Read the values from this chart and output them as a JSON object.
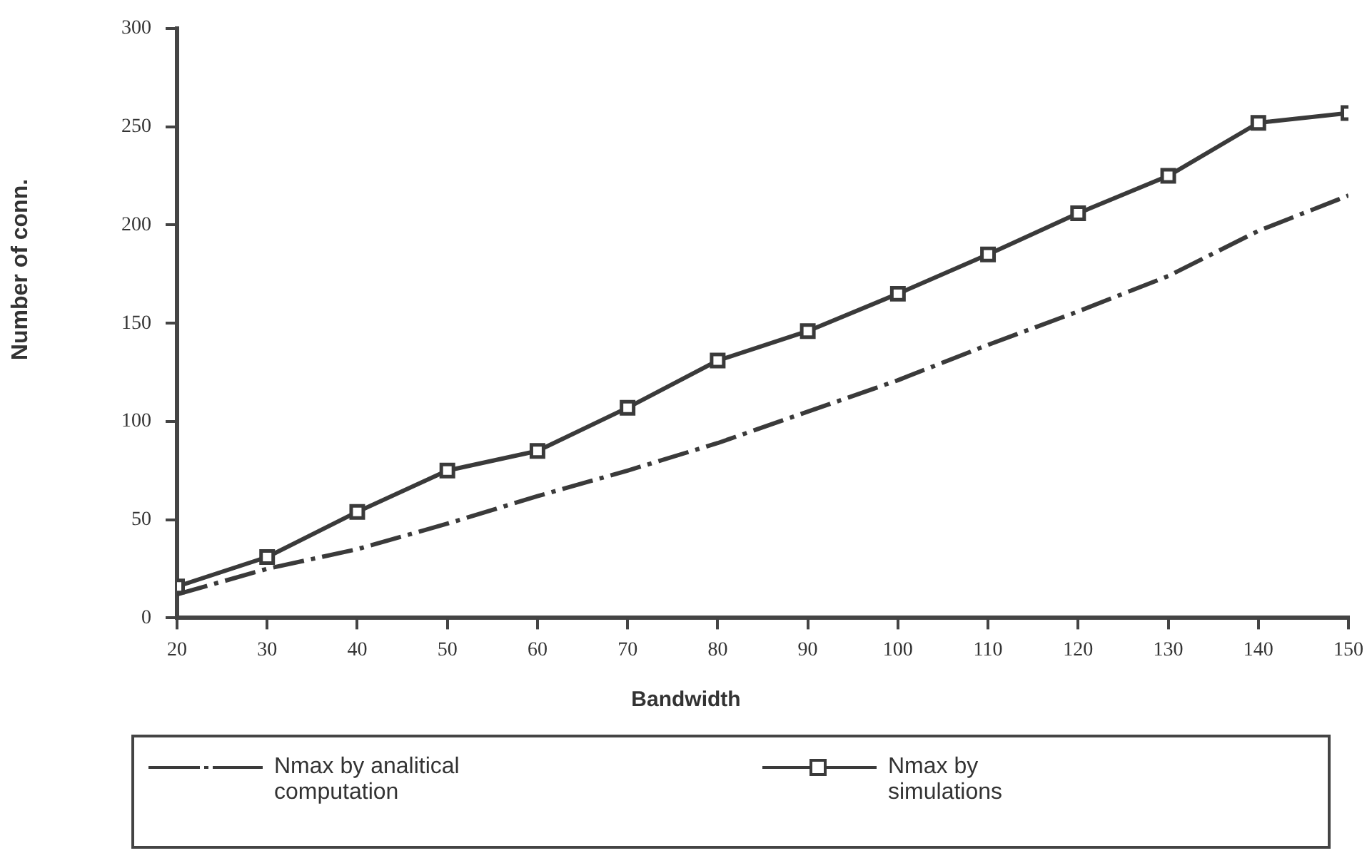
{
  "chart_data": {
    "type": "line",
    "xlabel": "Bandwidth",
    "ylabel": "Number  of  conn.",
    "x": [
      20,
      30,
      40,
      50,
      60,
      70,
      80,
      90,
      100,
      110,
      120,
      130,
      140,
      150
    ],
    "xlim": [
      20,
      150
    ],
    "xticks": [
      20,
      30,
      40,
      50,
      60,
      70,
      80,
      90,
      100,
      110,
      120,
      130,
      140,
      150
    ],
    "ylim": [
      0,
      300
    ],
    "yticks": [
      0,
      50,
      100,
      150,
      200,
      250,
      300
    ],
    "grid": false,
    "legend": "bottom",
    "series": [
      {
        "name": "Nmax by analitical computation",
        "color": "#3a3a3a",
        "line_style": "dashed",
        "marker": "none",
        "values": [
          12,
          25,
          35,
          48,
          62,
          75,
          89,
          105,
          121,
          139,
          156,
          174,
          197,
          215
        ]
      },
      {
        "name": "Nmax by simulations",
        "color": "#3a3a3a",
        "line_style": "solid",
        "marker": "square",
        "values": [
          16,
          31,
          54,
          75,
          85,
          107,
          131,
          146,
          165,
          185,
          206,
          225,
          252,
          257
        ]
      }
    ]
  }
}
